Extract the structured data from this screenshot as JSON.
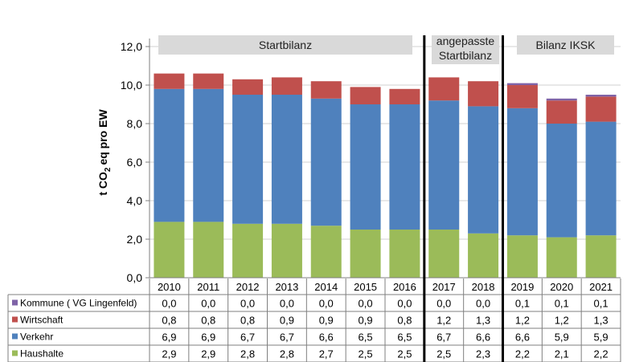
{
  "chart_data": {
    "type": "bar",
    "stacked": true,
    "ylabel_main": "t CO",
    "ylabel_sub": "2",
    "ylabel_rest": "eq pro EW",
    "ylim": [
      0,
      12
    ],
    "yticks": [
      "0,0",
      "2,0",
      "4,0",
      "6,0",
      "8,0",
      "10,0",
      "12,0"
    ],
    "categories": [
      "2010",
      "2011",
      "2012",
      "2013",
      "2014",
      "2015",
      "2016",
      "2017",
      "2018",
      "2019",
      "2020",
      "2021"
    ],
    "series": [
      {
        "name": "Kommune ( VG Lingenfeld)",
        "color": "#7f63a7",
        "values": [
          0.0,
          0.0,
          0.0,
          0.0,
          0.0,
          0.0,
          0.0,
          0.0,
          0.0,
          0.1,
          0.1,
          0.1
        ],
        "labels": [
          "0,0",
          "0,0",
          "0,0",
          "0,0",
          "0,0",
          "0,0",
          "0,0",
          "0,0",
          "0,0",
          "0,1",
          "0,1",
          "0,1"
        ]
      },
      {
        "name": "Wirtschaft",
        "color": "#c0504d",
        "values": [
          0.8,
          0.8,
          0.8,
          0.9,
          0.9,
          0.9,
          0.8,
          1.2,
          1.3,
          1.2,
          1.2,
          1.3
        ],
        "labels": [
          "0,8",
          "0,8",
          "0,8",
          "0,9",
          "0,9",
          "0,9",
          "0,8",
          "1,2",
          "1,3",
          "1,2",
          "1,2",
          "1,3"
        ]
      },
      {
        "name": "Verkehr",
        "color": "#4f81bd",
        "values": [
          6.9,
          6.9,
          6.7,
          6.7,
          6.6,
          6.5,
          6.5,
          6.7,
          6.6,
          6.6,
          5.9,
          5.9
        ],
        "labels": [
          "6,9",
          "6,9",
          "6,7",
          "6,7",
          "6,6",
          "6,5",
          "6,5",
          "6,7",
          "6,6",
          "6,6",
          "5,9",
          "5,9"
        ]
      },
      {
        "name": "Haushalte",
        "color": "#9bbb59",
        "values": [
          2.9,
          2.9,
          2.8,
          2.8,
          2.7,
          2.5,
          2.5,
          2.5,
          2.3,
          2.2,
          2.1,
          2.2
        ],
        "labels": [
          "2,9",
          "2,9",
          "2,8",
          "2,8",
          "2,7",
          "2,5",
          "2,5",
          "2,5",
          "2,3",
          "2,2",
          "2,1",
          "2,2"
        ]
      }
    ],
    "groups": [
      {
        "lines": [
          "Startbilanz"
        ]
      },
      {
        "lines": [
          "angepasste",
          "Startbilanz"
        ]
      },
      {
        "lines": [
          "Bilanz IKSK"
        ]
      }
    ],
    "group_band_color": "#d9d9d9",
    "separator_color": "#000000",
    "grid": true,
    "legend": "table-bottom"
  }
}
